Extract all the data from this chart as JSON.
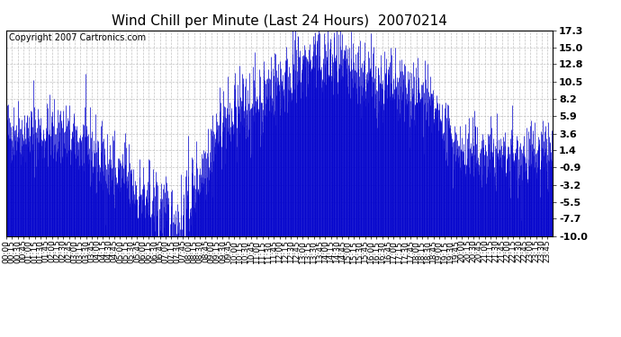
{
  "title": "Wind Chill per Minute (Last 24 Hours)  20070214",
  "copyright": "Copyright 2007 Cartronics.com",
  "line_color": "#0000cc",
  "background_color": "#ffffff",
  "plot_bg_color": "#ffffff",
  "grid_color": "#aaaaaa",
  "yticks": [
    17.3,
    15.0,
    12.8,
    10.5,
    8.2,
    5.9,
    3.6,
    1.4,
    -0.9,
    -3.2,
    -5.5,
    -7.7,
    -10.0
  ],
  "ylim_min": -10.0,
  "ylim_max": 17.3,
  "title_fontsize": 11,
  "copyright_fontsize": 7,
  "tick_fontsize": 8,
  "x_tick_interval_minutes": 15,
  "total_minutes": 1440,
  "seed": 42
}
